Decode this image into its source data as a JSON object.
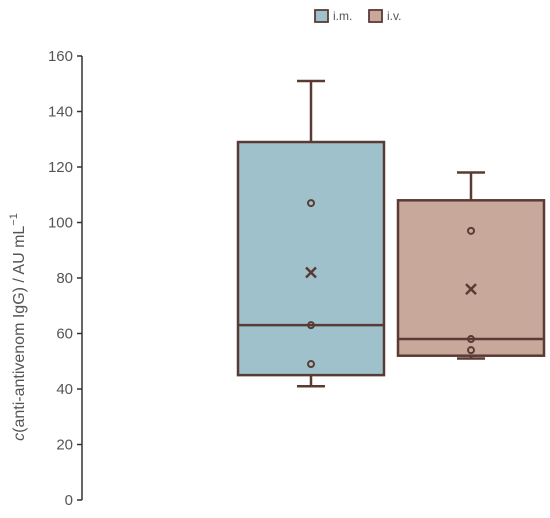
{
  "chart_data": {
    "type": "box",
    "ylabel": {
      "italic_symbol": "c",
      "text": "(anti-antivenom IgG) / AU mL",
      "superscript": "−1"
    },
    "ylim": [
      0,
      160
    ],
    "yticks": [
      0,
      20,
      40,
      60,
      80,
      100,
      120,
      140,
      160
    ],
    "grid": false,
    "legend_position": "top-center",
    "series": [
      {
        "name": "i.m.",
        "color": "#9ec1cc",
        "whisker_low": 41,
        "q1": 45,
        "median": 63,
        "mean": 82,
        "q3": 129,
        "whisker_high": 151,
        "points": [
          49,
          63,
          107
        ]
      },
      {
        "name": "i.v.",
        "color": "#c9a89c",
        "whisker_low": 51,
        "q1": 52,
        "median": 58,
        "mean": 76,
        "q3": 108,
        "whisker_high": 118,
        "points": [
          54,
          58,
          97
        ]
      }
    ],
    "stroke_color": "#5a3b33",
    "axis_color": "#333333"
  }
}
